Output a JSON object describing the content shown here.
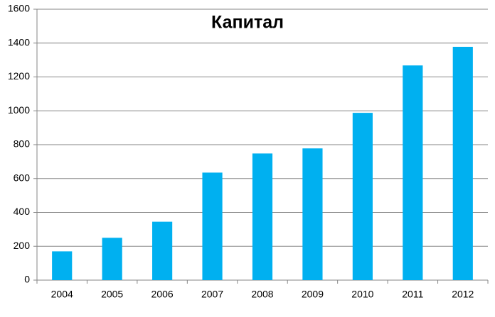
{
  "chart_data": {
    "type": "bar",
    "title": "Капитал",
    "categories": [
      "2004",
      "2005",
      "2006",
      "2007",
      "2008",
      "2009",
      "2010",
      "2011",
      "2012"
    ],
    "values": [
      170,
      250,
      345,
      635,
      748,
      778,
      988,
      1268,
      1378
    ],
    "color": "#00b0f0",
    "ylim": [
      0,
      1600
    ],
    "yticks": [
      0,
      200,
      400,
      600,
      800,
      1000,
      1200,
      1400,
      1600
    ],
    "grid": true
  }
}
